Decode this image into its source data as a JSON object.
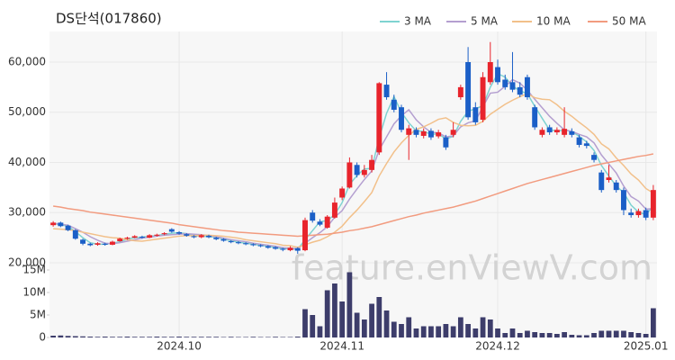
{
  "chart_data": {
    "type": "candlestick",
    "title": "DS단석(017860)",
    "watermark": "feature.enViewV.com",
    "up_color": "#e8242c",
    "down_color": "#1b5fc7",
    "categories": [
      null,
      null,
      null,
      null,
      null,
      null,
      null,
      null,
      null,
      null,
      null,
      null,
      null,
      null,
      null,
      null,
      null,
      "2024.10",
      null,
      null,
      null,
      null,
      null,
      null,
      null,
      null,
      null,
      null,
      null,
      null,
      null,
      null,
      null,
      null,
      null,
      null,
      null,
      null,
      null,
      "2024.11",
      null,
      null,
      null,
      null,
      null,
      null,
      null,
      null,
      null,
      null,
      null,
      null,
      null,
      null,
      null,
      null,
      null,
      null,
      null,
      null,
      "2024.12",
      null,
      null,
      null,
      null,
      null,
      null,
      null,
      null,
      null,
      null,
      null,
      null,
      null,
      null,
      null,
      null,
      null,
      null,
      null,
      "2025.01",
      null
    ],
    "open": [
      27500,
      28000,
      27400,
      26500,
      24600,
      23800,
      23600,
      23800,
      23600,
      24300,
      24800,
      25000,
      25200,
      25000,
      25400,
      25700,
      26700,
      26100,
      25700,
      25300,
      25100,
      25400,
      25000,
      24700,
      24300,
      24100,
      23900,
      23700,
      23500,
      23300,
      23100,
      22800,
      22500,
      22900,
      22500,
      30000,
      28200,
      27000,
      29000,
      33000,
      35000,
      39500,
      37500,
      38500,
      42000,
      55500,
      52500,
      51000,
      45500,
      46500,
      45300,
      46300,
      45200,
      45000,
      45500,
      53000,
      60000,
      51000,
      48500,
      56000,
      59000,
      56500,
      56000,
      55000,
      57000,
      51000,
      45500,
      47000,
      46000,
      45500,
      46200,
      45000,
      43800,
      41500,
      38000,
      36500,
      36000,
      34500,
      30000,
      29500,
      30500,
      29000
    ],
    "high": [
      28300,
      28200,
      27600,
      26700,
      24800,
      24000,
      24100,
      24000,
      24400,
      25000,
      25200,
      25500,
      25400,
      25700,
      25800,
      26100,
      26900,
      26300,
      25900,
      25500,
      25700,
      25600,
      25200,
      24900,
      24500,
      24300,
      24100,
      23900,
      23700,
      23500,
      23300,
      23000,
      23300,
      23100,
      29000,
      30500,
      28700,
      29500,
      33000,
      35200,
      41000,
      40000,
      39500,
      41500,
      56000,
      58000,
      53500,
      51500,
      47500,
      47000,
      46800,
      46800,
      46500,
      45500,
      48000,
      55500,
      63000,
      52000,
      58000,
      64000,
      60500,
      57500,
      62000,
      56000,
      57500,
      51500,
      47000,
      47500,
      47000,
      51000,
      46800,
      45500,
      44300,
      42000,
      38500,
      39500,
      36500,
      35000,
      30800,
      30800,
      31000,
      35500
    ],
    "low": [
      27200,
      27100,
      26300,
      24600,
      23500,
      23300,
      23400,
      23400,
      23500,
      24200,
      24600,
      24900,
      24800,
      24900,
      25200,
      25500,
      26000,
      25600,
      25200,
      24900,
      24900,
      24900,
      24500,
      24200,
      23900,
      23700,
      23500,
      23300,
      23100,
      22800,
      22600,
      22300,
      22300,
      21800,
      22300,
      28000,
      27300,
      26800,
      28800,
      32500,
      34800,
      37000,
      37000,
      38000,
      41500,
      52500,
      50000,
      46000,
      40500,
      45000,
      44800,
      44500,
      44800,
      42500,
      45000,
      52500,
      48500,
      47500,
      48000,
      55500,
      55500,
      54500,
      54000,
      53000,
      52500,
      46500,
      45000,
      45500,
      45500,
      45000,
      45000,
      43000,
      42800,
      40000,
      34000,
      36000,
      34000,
      29500,
      29000,
      29000,
      28500,
      28500
    ],
    "close": [
      28000,
      27300,
      26500,
      24800,
      23800,
      23500,
      23900,
      23600,
      24200,
      24800,
      25000,
      25300,
      25000,
      25500,
      25600,
      25900,
      26200,
      25800,
      25400,
      25100,
      25500,
      25100,
      24700,
      24400,
      24100,
      23900,
      23700,
      23500,
      23300,
      23000,
      22800,
      22600,
      23000,
      22400,
      28500,
      28400,
      27600,
      29200,
      32000,
      34800,
      40000,
      37500,
      38500,
      40500,
      55800,
      53000,
      50500,
      46500,
      46800,
      45500,
      46200,
      45000,
      46000,
      43000,
      46500,
      55000,
      49000,
      48000,
      57000,
      60000,
      56000,
      55000,
      54500,
      53500,
      53000,
      47000,
      46500,
      46000,
      46500,
      46700,
      45500,
      43500,
      43300,
      40500,
      34500,
      37000,
      34500,
      30500,
      29500,
      30300,
      29000,
      34500
    ],
    "ylim": [
      19100,
      66100
    ],
    "yticks": [
      {
        "value": 20000,
        "label": "20,000"
      },
      {
        "value": 30000,
        "label": "30,000"
      },
      {
        "value": 40000,
        "label": "40,000"
      },
      {
        "value": 50000,
        "label": "50,000"
      },
      {
        "value": 60000,
        "label": "60,000"
      }
    ],
    "series": [
      {
        "name": "3 MA",
        "color": "#7fd3d1",
        "values": [
          27800,
          27600,
          27300,
          26200,
          25000,
          24000,
          23700,
          23700,
          23900,
          24200,
          24700,
          25000,
          25100,
          25300,
          25400,
          25700,
          25900,
          26000,
          25800,
          25400,
          25300,
          25200,
          25100,
          24700,
          24400,
          24100,
          23900,
          23700,
          23500,
          23300,
          23000,
          22800,
          22800,
          22700,
          24600,
          26400,
          28200,
          28400,
          29600,
          32000,
          35600,
          37400,
          38700,
          38800,
          44900,
          49800,
          53100,
          50000,
          47900,
          46300,
          46200,
          45600,
          45700,
          44700,
          45200,
          48200,
          50200,
          50700,
          51300,
          55000,
          57700,
          57000,
          55200,
          54300,
          53700,
          51200,
          48800,
          46500,
          46300,
          46400,
          46200,
          45200,
          44100,
          42400,
          39400,
          37300,
          35300,
          34000,
          31500,
          30100,
          29600,
          31300
        ]
      },
      {
        "name": "5 MA",
        "color": "#b49fd0",
        "values": [
          27900,
          27700,
          27500,
          26800,
          26100,
          25200,
          24500,
          23900,
          23800,
          24000,
          24300,
          24600,
          24900,
          25100,
          25300,
          25500,
          25600,
          25700,
          25800,
          25700,
          25600,
          25400,
          25200,
          24900,
          24600,
          24400,
          24200,
          23900,
          23700,
          23500,
          23300,
          23000,
          22900,
          22800,
          23900,
          25000,
          26000,
          27200,
          29100,
          30400,
          32700,
          34700,
          36600,
          38300,
          42500,
          45100,
          47700,
          49300,
          50500,
          48500,
          47100,
          46000,
          45900,
          45100,
          45300,
          47100,
          47900,
          48300,
          51100,
          53800,
          54000,
          55200,
          56500,
          55800,
          54400,
          52600,
          50900,
          49200,
          47800,
          46500,
          46200,
          45600,
          45100,
          43900,
          41500,
          39700,
          37900,
          35300,
          33200,
          32300,
          30700,
          30800
        ]
      },
      {
        "name": "10 MA",
        "color": "#f2c08a",
        "values": [
          26800,
          26700,
          26600,
          26400,
          26100,
          25800,
          25500,
          25200,
          25000,
          24900,
          24600,
          24400,
          24300,
          24500,
          24700,
          24900,
          25100,
          25300,
          25400,
          25400,
          25500,
          25500,
          25400,
          25300,
          25100,
          24900,
          24600,
          24400,
          24200,
          24000,
          23800,
          23500,
          23400,
          23100,
          23600,
          24100,
          24500,
          25200,
          26100,
          27300,
          29000,
          30500,
          32200,
          34000,
          37300,
          39800,
          42100,
          43900,
          45400,
          46600,
          47100,
          47800,
          48600,
          48900,
          48000,
          47400,
          47300,
          47400,
          48200,
          49600,
          50600,
          51600,
          52400,
          53100,
          53700,
          52900,
          52600,
          52500,
          51500,
          50200,
          49200,
          48000,
          46900,
          45600,
          43700,
          42700,
          40900,
          39400,
          37700,
          36500,
          34800,
          33900
        ]
      },
      {
        "name": "50 MA",
        "color": "#f29b7f",
        "values": [
          31300,
          31100,
          30800,
          30600,
          30400,
          30100,
          29900,
          29700,
          29500,
          29300,
          29100,
          28900,
          28700,
          28500,
          28300,
          28100,
          27900,
          27600,
          27400,
          27200,
          27000,
          26800,
          26600,
          26400,
          26300,
          26100,
          26000,
          25900,
          25800,
          25700,
          25600,
          25500,
          25400,
          25300,
          25400,
          25500,
          25600,
          25700,
          25900,
          26100,
          26400,
          26600,
          26900,
          27200,
          27600,
          28000,
          28400,
          28800,
          29200,
          29500,
          29900,
          30200,
          30500,
          30800,
          31100,
          31500,
          31900,
          32300,
          32800,
          33300,
          33800,
          34300,
          34800,
          35300,
          35800,
          36200,
          36600,
          37000,
          37400,
          37800,
          38200,
          38600,
          39000,
          39400,
          39700,
          40000,
          40300,
          40600,
          40900,
          41200,
          41400,
          41700
        ]
      }
    ],
    "volume": {
      "color": "#3d3d6b",
      "ylim": [
        0,
        15600000
      ],
      "yticks": [
        0,
        {
          "value": 5000000,
          "label": "5M"
        },
        {
          "value": 10000000,
          "label": "10M"
        },
        {
          "value": 15000000,
          "label": "15M"
        }
      ],
      "values": [
        400000,
        450000,
        350000,
        300000,
        250000,
        200000,
        150000,
        200000,
        150000,
        150000,
        200000,
        150000,
        150000,
        150000,
        200000,
        150000,
        150000,
        200000,
        150000,
        150000,
        150000,
        150000,
        150000,
        100000,
        150000,
        100000,
        100000,
        150000,
        100000,
        100000,
        150000,
        100000,
        100000,
        200000,
        6300000,
        5000000,
        2500000,
        10500000,
        12000000,
        8000000,
        14500000,
        5500000,
        4000000,
        7500000,
        9000000,
        6000000,
        3500000,
        3000000,
        4500000,
        2000000,
        2500000,
        2500000,
        2500000,
        3000000,
        2500000,
        4500000,
        3000000,
        2000000,
        4500000,
        4000000,
        2000000,
        1000000,
        2000000,
        1000000,
        1500000,
        1200000,
        1000000,
        1000000,
        800000,
        1200000,
        600000,
        500000,
        500000,
        1000000,
        1500000,
        1500000,
        1500000,
        1500000,
        1200000,
        1000000,
        800000,
        6500000
      ]
    }
  }
}
